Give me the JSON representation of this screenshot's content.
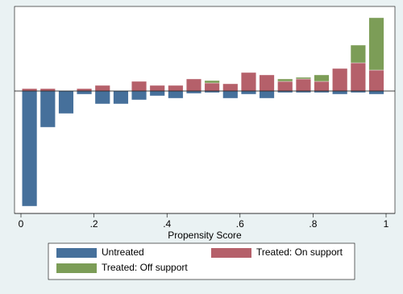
{
  "chart_data": {
    "type": "histogram",
    "x_label": "Propensity Score",
    "bins": [
      0,
      0.05,
      0.1,
      0.15,
      0.2,
      0.25,
      0.3,
      0.35,
      0.4,
      0.45,
      0.5,
      0.55,
      0.6,
      0.65,
      0.7,
      0.75,
      0.8,
      0.85,
      0.9,
      0.95,
      1
    ],
    "series": [
      {
        "name": "Untreated",
        "color": "#46709b",
        "values": [
          -143,
          -45,
          -28,
          -4,
          -16,
          -16,
          -11,
          -6,
          -9,
          -3,
          -2,
          -9,
          -4,
          -9,
          -2,
          -2,
          -2,
          -4,
          -2,
          -4
        ]
      },
      {
        "name": "Treated: On support",
        "color": "#b5606a",
        "values": [
          3,
          3,
          0,
          3,
          7,
          0,
          12,
          7,
          7,
          15,
          10,
          9,
          23,
          20,
          12,
          15,
          12,
          28,
          35,
          26
        ]
      },
      {
        "name": "Treated: Off support",
        "color": "#7c9d57",
        "values": [
          0,
          0,
          0,
          0,
          0,
          0,
          0,
          0,
          0,
          0,
          3,
          0,
          0,
          0,
          3,
          2,
          8,
          0,
          22,
          65
        ]
      }
    ],
    "xlim": [
      0,
      1
    ],
    "xticks": [
      0,
      {
        "value": 0.2,
        "label": ".2"
      },
      {
        "value": 0.4,
        "label": ".4"
      },
      {
        "value": 0.6,
        "label": ".6"
      },
      {
        "value": 0.8,
        "label": ".8"
      },
      1
    ],
    "ylim": [
      -150,
      105
    ]
  }
}
